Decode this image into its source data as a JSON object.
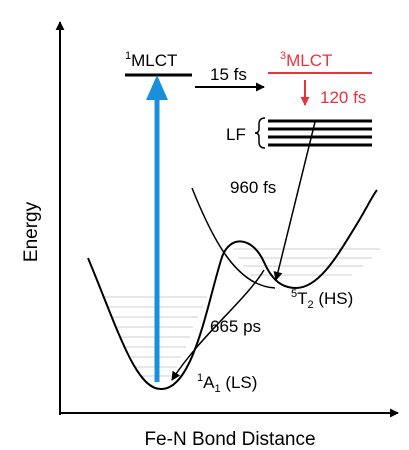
{
  "axes": {
    "x_label": "Fe-N Bond Distance",
    "y_label": "Energy"
  },
  "states": {
    "mlct1": {
      "sup": "1",
      "name": "MLCT"
    },
    "mlct3": {
      "sup": "3",
      "name": "MLCT"
    },
    "lf": {
      "name": "LF"
    },
    "t2": {
      "sup": "5",
      "name": "T",
      "sub": "2",
      "suffix": " (HS)"
    },
    "a1": {
      "sup": "1",
      "name": "A",
      "sub": "1",
      "suffix": " (LS)"
    }
  },
  "timescales": {
    "isc": "15 fs",
    "mlct_to_lf": "120 fs",
    "lf_to_hs": "960 fs",
    "hs_to_ls": "665 ps"
  },
  "colors": {
    "excitation": "#1a8fdc",
    "triplet": "#e8323c",
    "line": "#000000",
    "vib_levels": "#cfcfcf"
  }
}
